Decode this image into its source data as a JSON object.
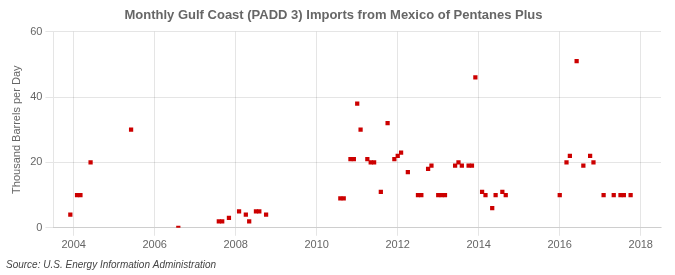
{
  "chart_data": {
    "type": "scatter",
    "title": "Monthly Gulf Coast (PADD 3) Imports from Mexico of Pentanes Plus",
    "y_label": "Thousand Barrels per Day",
    "annotations": [
      "Source: U.S. Energy Information Administration"
    ],
    "color": "#cc0000",
    "marker": "square",
    "grid": true,
    "xlim": [
      2003.5,
      2018.5
    ],
    "xticks": [
      2004,
      2006,
      2008,
      2010,
      2012,
      2014,
      2016,
      2018
    ],
    "ylim": [
      0,
      60
    ],
    "yticks": [
      0,
      20,
      40,
      60
    ],
    "x": [
      2003.917,
      2004.083,
      2004.167,
      2004.417,
      2005.417,
      2006.583,
      2007.583,
      2007.667,
      2007.833,
      2008.083,
      2008.25,
      2008.333,
      2008.5,
      2008.583,
      2008.75,
      2010.583,
      2010.667,
      2010.833,
      2010.917,
      2011.0,
      2011.083,
      2011.25,
      2011.333,
      2011.417,
      2011.583,
      2011.75,
      2011.917,
      2012.0,
      2012.083,
      2012.25,
      2012.5,
      2012.583,
      2012.75,
      2012.833,
      2013.0,
      2013.083,
      2013.167,
      2013.417,
      2013.5,
      2013.583,
      2013.75,
      2013.833,
      2013.917,
      2014.083,
      2014.167,
      2014.333,
      2014.417,
      2014.583,
      2014.667,
      2016.0,
      2016.167,
      2016.25,
      2016.417,
      2016.583,
      2016.75,
      2016.833,
      2017.083,
      2017.333,
      2017.5,
      2017.583,
      2017.75
    ],
    "values": [
      4,
      10,
      10,
      20,
      30,
      0,
      2,
      2,
      3,
      5,
      4,
      2,
      5,
      5,
      4,
      9,
      9,
      21,
      21,
      38,
      30,
      21,
      20,
      20,
      11,
      32,
      21,
      22,
      23,
      17,
      10,
      10,
      18,
      19,
      10,
      10,
      10,
      19,
      20,
      19,
      19,
      19,
      46,
      11,
      10,
      6,
      10,
      11,
      10,
      10,
      20,
      22,
      51,
      19,
      22,
      20,
      10,
      10,
      10,
      10,
      10
    ]
  }
}
